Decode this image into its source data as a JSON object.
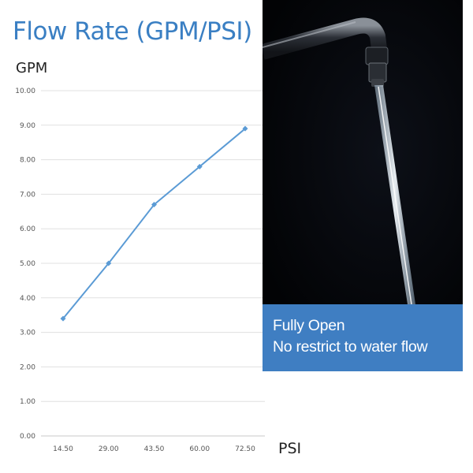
{
  "chart_data": {
    "type": "line",
    "title": "Flow Rate (GPM/PSI)",
    "ylabel": "GPM",
    "xlabel": "PSI",
    "categories": [
      "14.50",
      "29.00",
      "43.50",
      "60.00",
      "72.50"
    ],
    "values": [
      3.4,
      5.0,
      6.7,
      7.8,
      8.9
    ],
    "ylim": [
      0,
      10
    ],
    "yticks": [
      "0.00",
      "1.00",
      "2.00",
      "3.00",
      "4.00",
      "5.00",
      "6.00",
      "7.00",
      "8.00",
      "9.00",
      "10.00"
    ],
    "grid": true,
    "line_color": "#5b9bd5"
  },
  "caption": {
    "line1": "Fully Open",
    "line2": "No restrict to water flow",
    "background": "#3f7ec2"
  },
  "colors": {
    "title": "#3a7fc3"
  }
}
